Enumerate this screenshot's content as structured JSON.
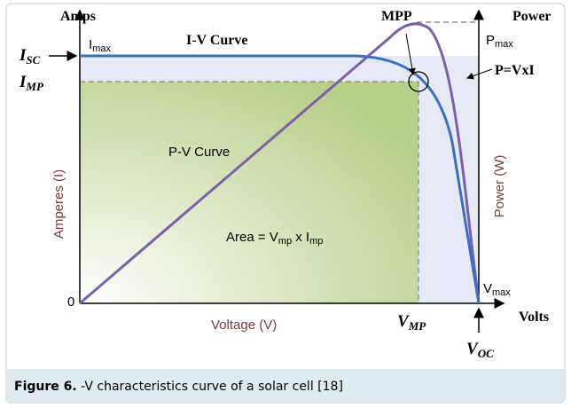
{
  "diagram": {
    "amps": "Amps",
    "power": "Power",
    "mpp": "MPP",
    "iv_curve": "I-V Curve",
    "p_formula": "P=VxI",
    "pv_curve": "P-V Curve",
    "amperes_axis": "Amperes (I)",
    "power_axis": "Power (W)",
    "voltage_axis": "Voltage (V)",
    "volts": "Volts",
    "origin": "0",
    "i_max": {
      "main": "I",
      "sub": "max"
    },
    "p_max": {
      "main": "P",
      "sub": "max"
    },
    "i_sc": {
      "main": "I",
      "sub": "SC"
    },
    "i_mp": {
      "main": "I",
      "sub": "MP"
    },
    "v_mp": {
      "main": "V",
      "sub": "MP"
    },
    "v_max": {
      "main": "V",
      "sub": "max"
    },
    "v_oc": {
      "main": "V",
      "sub": "OC"
    },
    "area": {
      "a": "Area = V",
      "b": "mp",
      "c": " x I",
      "d": "mp"
    }
  },
  "caption": {
    "label": "Figure 6.",
    "text": " -V characteristics curve of a solar cell [18]"
  }
}
